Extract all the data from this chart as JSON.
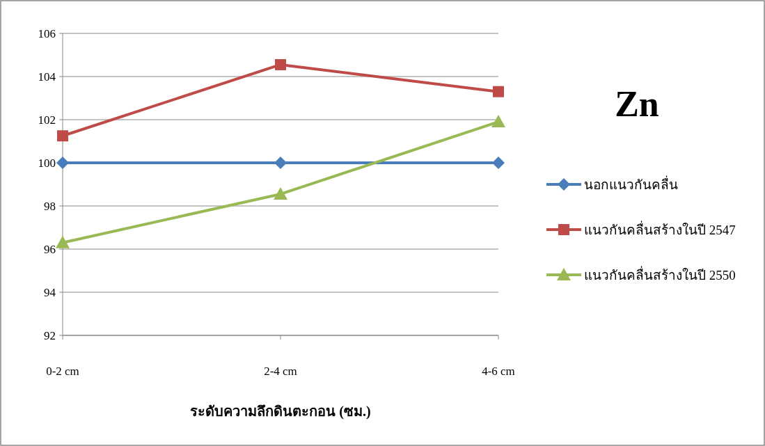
{
  "chart_data": {
    "type": "line",
    "title": "Zn",
    "xlabel": "ระดับความลึกดินตะกอน (ซม.)",
    "categories": [
      "0-2 cm",
      "2-4 cm",
      "4-6 cm"
    ],
    "series": [
      {
        "name": "นอกแนวกันคลื่น",
        "color": "#4a7ebb",
        "marker": "diamond",
        "values": [
          100,
          100,
          100
        ]
      },
      {
        "name": "แนวกันคลื่นสร้างในปี 2547",
        "color": "#be4b48",
        "marker": "square",
        "values": [
          101.25,
          104.55,
          103.3
        ]
      },
      {
        "name": "แนวกันคลื่นสร้างในปี 2550",
        "color": "#98b954",
        "marker": "triangle",
        "values": [
          96.3,
          98.55,
          101.9
        ]
      }
    ],
    "ylim": [
      92,
      106
    ],
    "yticks": [
      92,
      94,
      96,
      98,
      100,
      102,
      104,
      106
    ],
    "grid": "y",
    "legend": "right",
    "line_style": "solid"
  }
}
